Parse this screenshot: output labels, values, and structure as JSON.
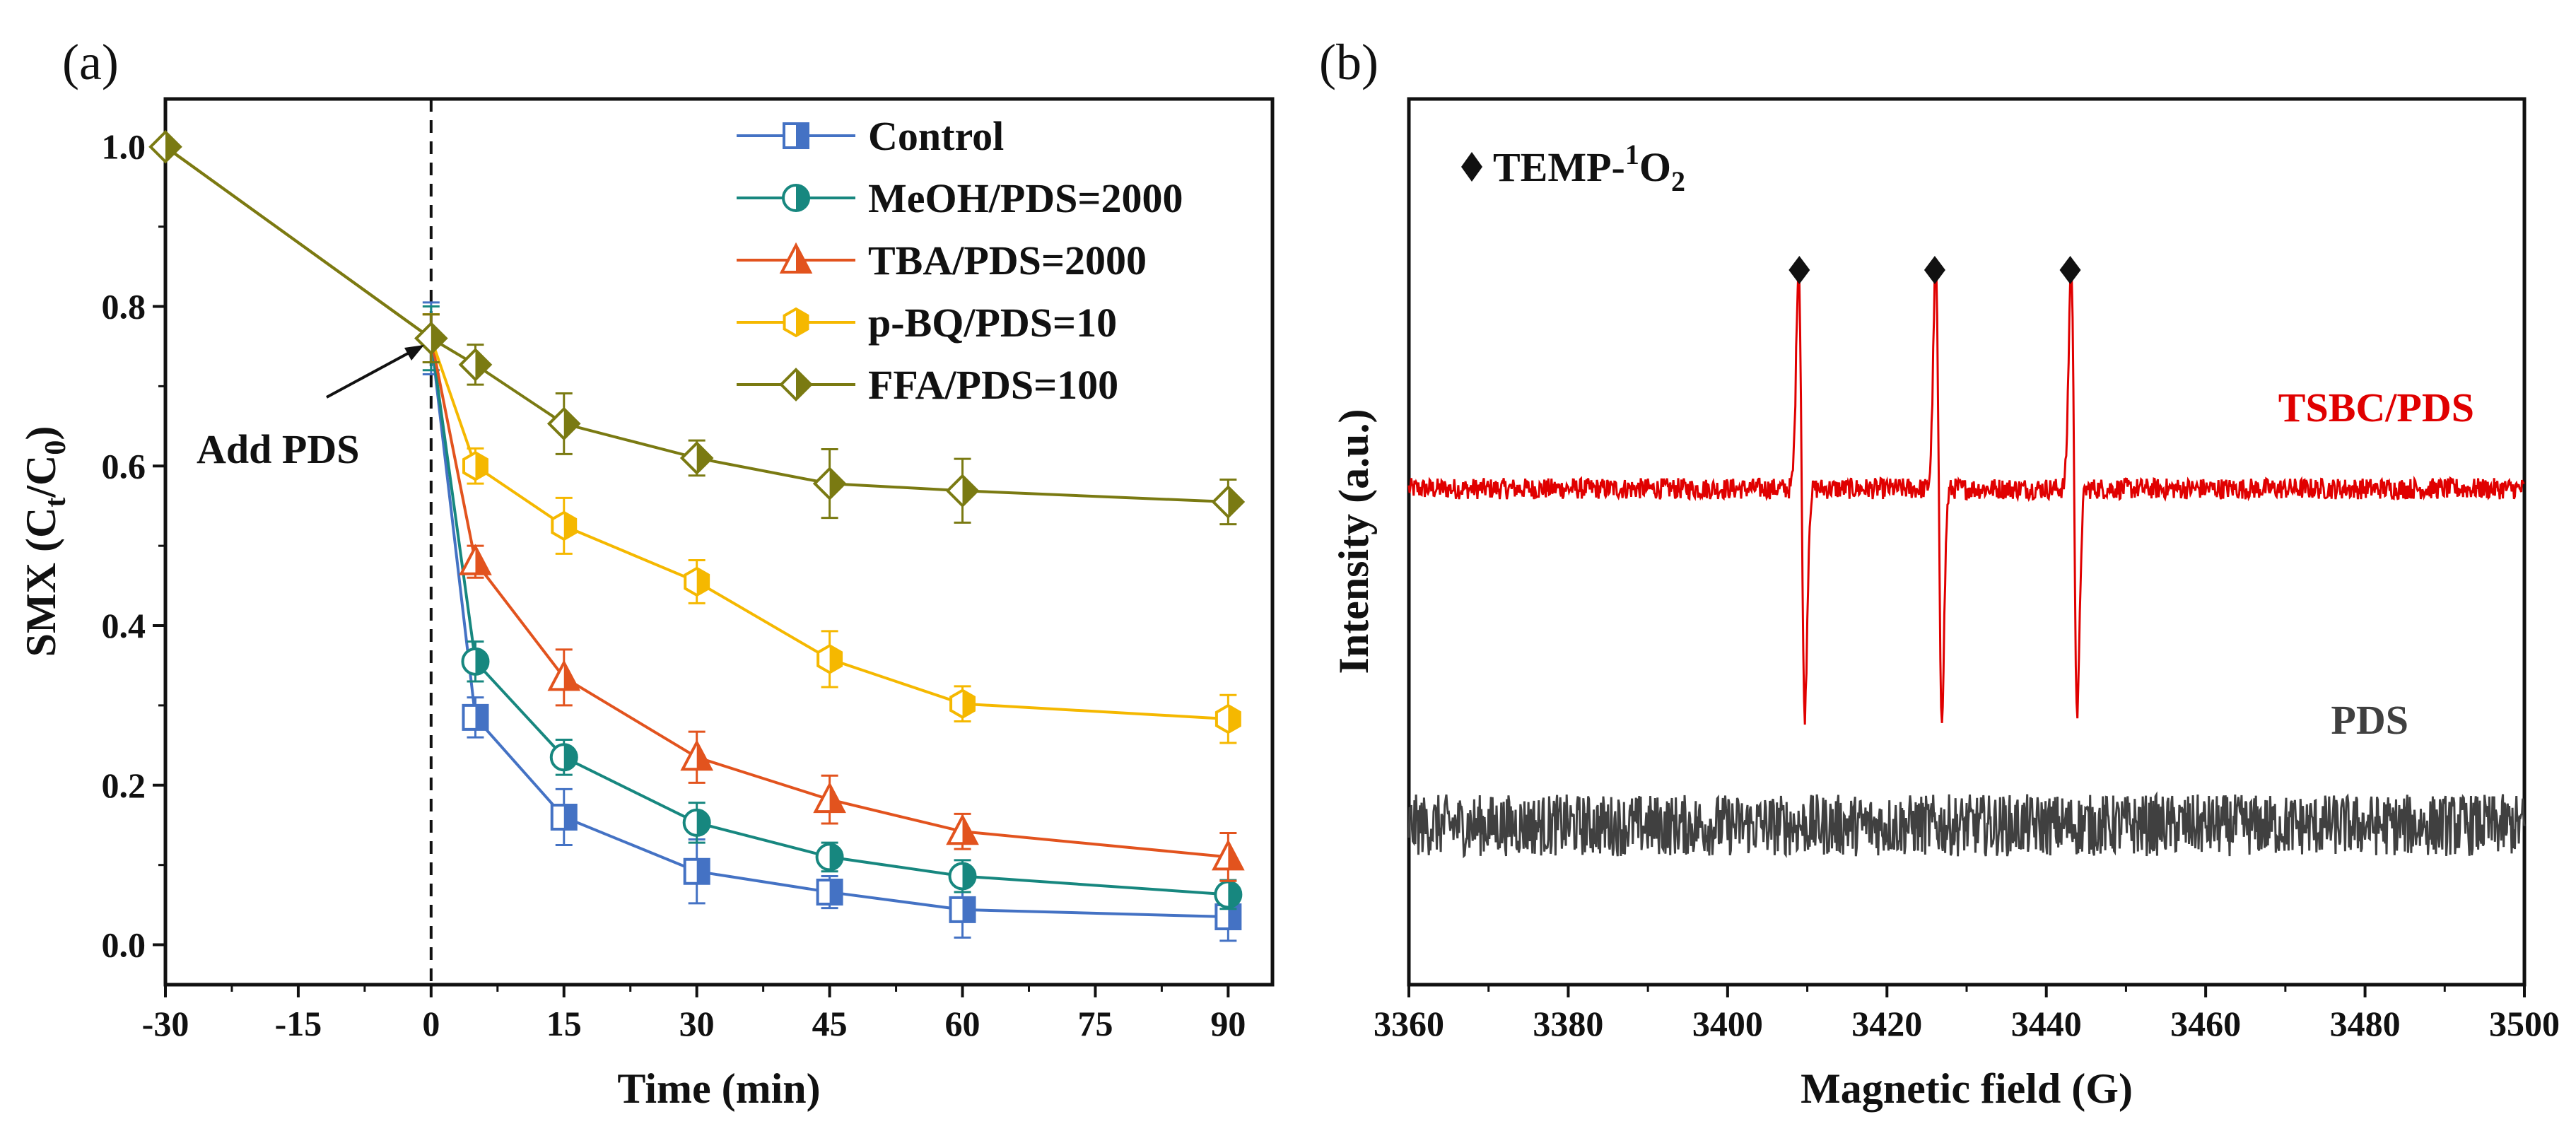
{
  "chart_data": [
    {
      "panel_label": "(a)",
      "type": "line",
      "xlabel": "Time (min)",
      "ylabel": "SMX (Ct/C0)",
      "ylabel_parts": {
        "main": "SMX (C",
        "sub1": "t",
        "mid": "/C",
        "sub2": "0",
        "end": ")"
      },
      "xlim": [
        -30,
        95
      ],
      "ylim": [
        -0.05,
        1.06
      ],
      "x_ticks": [
        -30,
        -15,
        0,
        15,
        30,
        45,
        60,
        75,
        90
      ],
      "x_tick_labels": [
        "-30",
        "-15",
        "0",
        "15",
        "30",
        "45",
        "60",
        "75",
        "90"
      ],
      "y_ticks": [
        0.0,
        0.2,
        0.4,
        0.6,
        0.8,
        1.0
      ],
      "y_tick_labels": [
        "0.0",
        "0.2",
        "0.4",
        "0.6",
        "0.8",
        "1.0"
      ],
      "x": [
        -30,
        0,
        5,
        15,
        30,
        45,
        60,
        90
      ],
      "legend_position": "top-right",
      "annotation": {
        "text": "Add PDS",
        "x": 0,
        "y": 0.76
      },
      "vline_x": 0,
      "series": [
        {
          "name": "Control",
          "color": "#4472C4",
          "marker": "square",
          "values": [
            1.0,
            0.76,
            0.285,
            0.16,
            0.092,
            0.066,
            0.044,
            0.035
          ],
          "errors": [
            0.0,
            0.045,
            0.025,
            0.035,
            0.04,
            0.02,
            0.035,
            0.03
          ]
        },
        {
          "name": "MeOH/PDS=2000",
          "color": "#17877F",
          "marker": "circle",
          "values": [
            1.0,
            0.76,
            0.355,
            0.235,
            0.153,
            0.11,
            0.086,
            0.063
          ],
          "errors": [
            0.0,
            0.04,
            0.025,
            0.022,
            0.025,
            0.018,
            0.02,
            0.018
          ]
        },
        {
          "name": "TBA/PDS=2000",
          "color": "#E2531E",
          "marker": "triangle",
          "values": [
            1.0,
            0.76,
            0.48,
            0.335,
            0.235,
            0.182,
            0.142,
            0.11
          ],
          "errors": [
            0.0,
            0.03,
            0.02,
            0.035,
            0.032,
            0.03,
            0.022,
            0.03
          ]
        },
        {
          "name": "p-BQ/PDS=10",
          "color": "#F5B800",
          "marker": "hexagon",
          "values": [
            1.0,
            0.76,
            0.6,
            0.525,
            0.455,
            0.358,
            0.302,
            0.283
          ],
          "errors": [
            0.0,
            0.03,
            0.022,
            0.035,
            0.027,
            0.035,
            0.022,
            0.03
          ]
        },
        {
          "name": "FFA/PDS=100",
          "color": "#7A7A12",
          "marker": "diamond",
          "values": [
            1.0,
            0.76,
            0.727,
            0.653,
            0.61,
            0.578,
            0.569,
            0.555
          ],
          "errors": [
            0.0,
            0.03,
            0.025,
            0.038,
            0.022,
            0.043,
            0.04,
            0.028
          ]
        }
      ]
    },
    {
      "panel_label": "(b)",
      "type": "line",
      "xlabel": "Magnetic field (G)",
      "ylabel": "Intensity (a.u.)",
      "xlim": [
        3360,
        3500
      ],
      "x_ticks": [
        3360,
        3380,
        3400,
        3420,
        3440,
        3460,
        3480,
        3500
      ],
      "x_tick_labels": [
        "3360",
        "3380",
        "3400",
        "3420",
        "3440",
        "3460",
        "3480",
        "3500"
      ],
      "y_ticks_shown": false,
      "legend_marker_text": {
        "main": "TEMP-",
        "sup": "1",
        "mid": "O",
        "sub": "2"
      },
      "peak_marker_x": [
        3409,
        3426,
        3443
      ],
      "series": [
        {
          "name": "TSBC/PDS",
          "color": "#E00000",
          "baseline": 0.56,
          "triplet_centers": [
            3409.3,
            3426.5,
            3443.5
          ],
          "peak_amplitude": 0.27,
          "trough_amplitude": 0.25,
          "noise": 0.012
        },
        {
          "name": "PDS",
          "color": "#404040",
          "baseline": 0.18,
          "noise": 0.035
        }
      ],
      "series_labels": {
        "TSBC/PDS": "TSBC/PDS",
        "PDS": "PDS"
      }
    }
  ]
}
